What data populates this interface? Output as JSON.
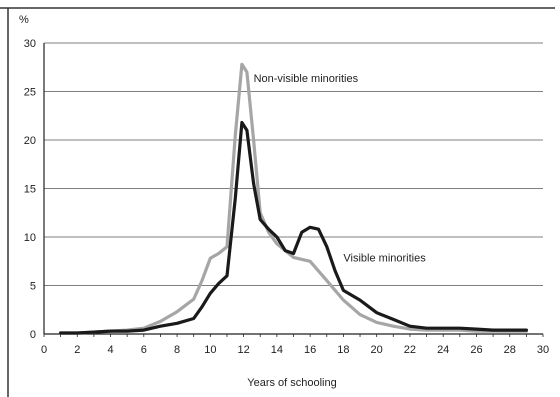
{
  "chart_data": {
    "type": "line",
    "title": "",
    "xlabel": "Years of schooling",
    "ylabel": "%",
    "xlim": [
      0,
      30
    ],
    "ylim": [
      0,
      30
    ],
    "xticks": [
      0,
      2,
      4,
      6,
      8,
      10,
      12,
      14,
      16,
      18,
      20,
      22,
      24,
      26,
      28,
      30
    ],
    "yticks": [
      0,
      5,
      10,
      15,
      20,
      25,
      30
    ],
    "grid": "horizontal",
    "series": [
      {
        "name": "Non-visible minorities",
        "color": "#a6a6a6",
        "x": [
          1,
          2,
          3,
          4,
          5,
          6,
          7,
          8,
          9,
          9.5,
          10,
          10.5,
          11,
          11.5,
          11.9,
          12.2,
          12.6,
          13,
          13.5,
          14,
          15,
          16,
          17,
          18,
          19,
          20,
          21,
          22,
          23,
          24,
          25,
          26,
          27,
          28,
          29
        ],
        "values": [
          0.1,
          0.1,
          0.2,
          0.3,
          0.4,
          0.6,
          1.3,
          2.3,
          3.6,
          5.5,
          7.8,
          8.3,
          9.0,
          20.5,
          27.8,
          27.0,
          20.0,
          12.5,
          10.5,
          9.3,
          7.9,
          7.5,
          5.5,
          3.5,
          2.0,
          1.2,
          0.8,
          0.5,
          0.4,
          0.4,
          0.4,
          0.3,
          0.3,
          0.3,
          0.3
        ]
      },
      {
        "name": "Visible minorities",
        "color": "#1a1a1a",
        "x": [
          1,
          2,
          3,
          4,
          5,
          6,
          7,
          8,
          9,
          9.5,
          10,
          10.5,
          11,
          11.5,
          11.9,
          12.2,
          12.6,
          13,
          13.5,
          14,
          14.5,
          15,
          15.5,
          16,
          16.5,
          17,
          17.5,
          18,
          19,
          20,
          21,
          22,
          23,
          24,
          25,
          26,
          27,
          28,
          29
        ],
        "values": [
          0.1,
          0.1,
          0.2,
          0.3,
          0.3,
          0.4,
          0.8,
          1.1,
          1.6,
          2.8,
          4.2,
          5.2,
          6.0,
          14.0,
          21.8,
          21.0,
          15.5,
          11.8,
          10.8,
          10.0,
          8.6,
          8.3,
          10.5,
          11.0,
          10.8,
          9.0,
          6.5,
          4.5,
          3.5,
          2.2,
          1.5,
          0.8,
          0.6,
          0.6,
          0.6,
          0.5,
          0.4,
          0.4,
          0.4
        ]
      }
    ],
    "annotations": [
      {
        "text": "Non-visible minorities",
        "x": 12.6,
        "y": 26.0
      },
      {
        "text": "Visible minorities",
        "x": 18.0,
        "y": 7.5
      }
    ]
  }
}
